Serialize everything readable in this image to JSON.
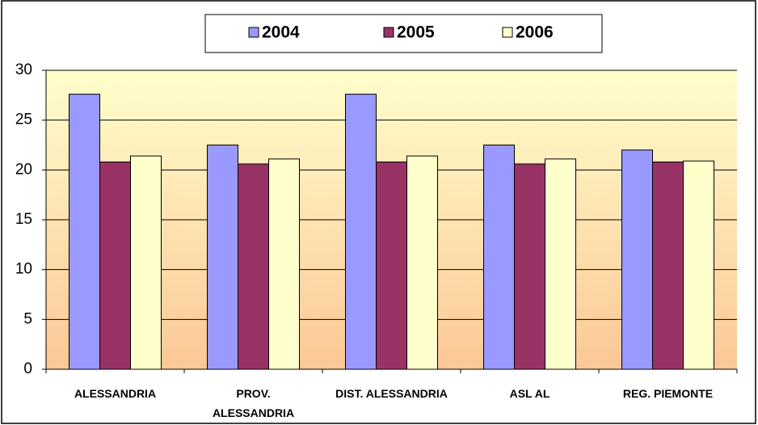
{
  "chart_data": {
    "type": "bar",
    "categories": [
      "ALESSANDRIA",
      "PROV. ALESSANDRIA",
      "DIST. ALESSANDRIA",
      "ASL AL",
      "REG. PIEMONTE"
    ],
    "series": [
      {
        "name": "2004",
        "color": "#9999ff",
        "values": [
          27.6,
          22.5,
          27.6,
          22.5,
          22.0
        ]
      },
      {
        "name": "2005",
        "color": "#993366",
        "values": [
          20.8,
          20.6,
          20.8,
          20.6,
          20.8
        ]
      },
      {
        "name": "2006",
        "color": "#ffffcc",
        "values": [
          21.4,
          21.1,
          21.4,
          21.1,
          20.9
        ]
      }
    ],
    "ylim": [
      0,
      30
    ],
    "yticks": [
      0,
      5,
      10,
      15,
      20,
      25,
      30
    ],
    "grid": true,
    "legend": "top"
  }
}
